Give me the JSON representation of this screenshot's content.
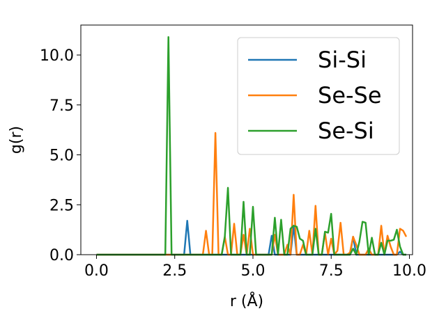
{
  "chart_data": {
    "type": "line",
    "xlabel": "r (Å)",
    "ylabel": "g(r)",
    "xlim": [
      -0.5,
      10.1
    ],
    "ylim": [
      0,
      11.5
    ],
    "xticks": [
      0.0,
      2.5,
      5.0,
      7.5,
      10.0
    ],
    "xtick_labels": [
      "0.0",
      "2.5",
      "5.0",
      "7.5",
      "10.0"
    ],
    "yticks": [
      0.0,
      2.5,
      5.0,
      7.5,
      10.0
    ],
    "ytick_labels": [
      "0.0",
      "2.5",
      "5.0",
      "7.5",
      "10.0"
    ],
    "grid": false,
    "legend_position": "top-right",
    "series": [
      {
        "name": "Si-Si",
        "color": "#1f77b4",
        "x": [
          0.0,
          2.7,
          2.8,
          2.9,
          3.0,
          3.1,
          5.5,
          5.6,
          5.7,
          6.2,
          6.3,
          6.4,
          6.5,
          8.1,
          8.2,
          8.3,
          9.6,
          9.7,
          9.8,
          9.9
        ],
        "y": [
          0.0,
          0.0,
          0.0,
          1.7,
          0.0,
          0.0,
          0.0,
          0.95,
          0.0,
          0.0,
          1.45,
          0.0,
          0.0,
          0.0,
          0.9,
          0.0,
          0.0,
          0.15,
          0.0,
          0.0
        ]
      },
      {
        "name": "Se-Se",
        "color": "#ff7f0e",
        "x": [
          0.0,
          3.4,
          3.5,
          3.6,
          3.7,
          3.8,
          3.9,
          4.0,
          4.1,
          4.2,
          4.3,
          4.4,
          4.5,
          4.6,
          4.7,
          4.8,
          4.9,
          5.0,
          5.1,
          5.2,
          5.3,
          5.4,
          5.5,
          5.6,
          5.7,
          5.8,
          5.9,
          6.0,
          6.1,
          6.2,
          6.3,
          6.4,
          6.5,
          6.6,
          6.7,
          6.8,
          6.9,
          7.0,
          7.1,
          7.2,
          7.3,
          7.4,
          7.5,
          7.6,
          7.7,
          7.8,
          7.9,
          8.0,
          8.1,
          8.2,
          8.3,
          8.4,
          8.5,
          8.6,
          8.7,
          8.8,
          8.9,
          9.0,
          9.1,
          9.2,
          9.3,
          9.4,
          9.5,
          9.6,
          9.7,
          9.8,
          9.9
        ],
        "y": [
          0.0,
          0.0,
          1.2,
          0.0,
          0.0,
          6.1,
          0.0,
          0.0,
          0.9,
          0.0,
          0.0,
          1.55,
          0.0,
          0.0,
          1.0,
          0.0,
          1.3,
          0.0,
          0.0,
          0.0,
          0.0,
          0.0,
          0.0,
          0.0,
          1.0,
          0.0,
          0.0,
          0.0,
          0.5,
          0.0,
          3.0,
          0.0,
          0.0,
          0.5,
          0.0,
          1.2,
          0.0,
          2.45,
          0.0,
          0.0,
          1.1,
          0.0,
          0.8,
          0.0,
          0.2,
          1.6,
          0.0,
          0.0,
          0.1,
          0.9,
          0.5,
          0.0,
          0.0,
          0.0,
          0.3,
          0.0,
          0.0,
          0.0,
          1.45,
          0.0,
          0.95,
          0.4,
          0.0,
          0.0,
          1.3,
          1.2,
          0.9
        ]
      },
      {
        "name": "Se-Si",
        "color": "#2ca02c",
        "x": [
          0.0,
          2.1,
          2.2,
          2.3,
          2.4,
          2.5,
          4.0,
          4.1,
          4.2,
          4.3,
          4.4,
          4.5,
          4.6,
          4.7,
          4.8,
          4.9,
          5.0,
          5.1,
          5.2,
          5.3,
          5.4,
          5.5,
          5.6,
          5.7,
          5.8,
          5.9,
          6.0,
          6.1,
          6.2,
          6.3,
          6.4,
          6.5,
          6.6,
          6.7,
          6.8,
          6.9,
          7.0,
          7.1,
          7.2,
          7.3,
          7.4,
          7.5,
          7.6,
          7.7,
          7.8,
          7.9,
          8.0,
          8.1,
          8.2,
          8.3,
          8.4,
          8.5,
          8.6,
          8.7,
          8.8,
          8.9,
          9.0,
          9.1,
          9.2,
          9.3,
          9.4,
          9.5,
          9.6,
          9.7,
          9.8,
          9.9
        ],
        "y": [
          0.0,
          0.0,
          0.0,
          10.9,
          0.0,
          0.0,
          0.0,
          0.9,
          3.35,
          0.0,
          0.0,
          0.0,
          0.0,
          2.65,
          0.0,
          0.0,
          2.4,
          0.0,
          0.0,
          0.0,
          0.0,
          0.0,
          0.0,
          1.85,
          0.0,
          1.75,
          0.0,
          0.0,
          1.3,
          1.45,
          1.4,
          0.8,
          0.7,
          0.0,
          0.0,
          0.0,
          1.3,
          0.0,
          0.0,
          1.15,
          1.1,
          2.05,
          0.0,
          0.0,
          0.0,
          0.0,
          0.0,
          0.0,
          0.3,
          0.0,
          0.65,
          1.65,
          1.6,
          0.0,
          0.85,
          0.0,
          0.0,
          0.6,
          0.0,
          0.7,
          0.7,
          0.75,
          1.25,
          0.4,
          0.0,
          0.0
        ]
      }
    ]
  }
}
